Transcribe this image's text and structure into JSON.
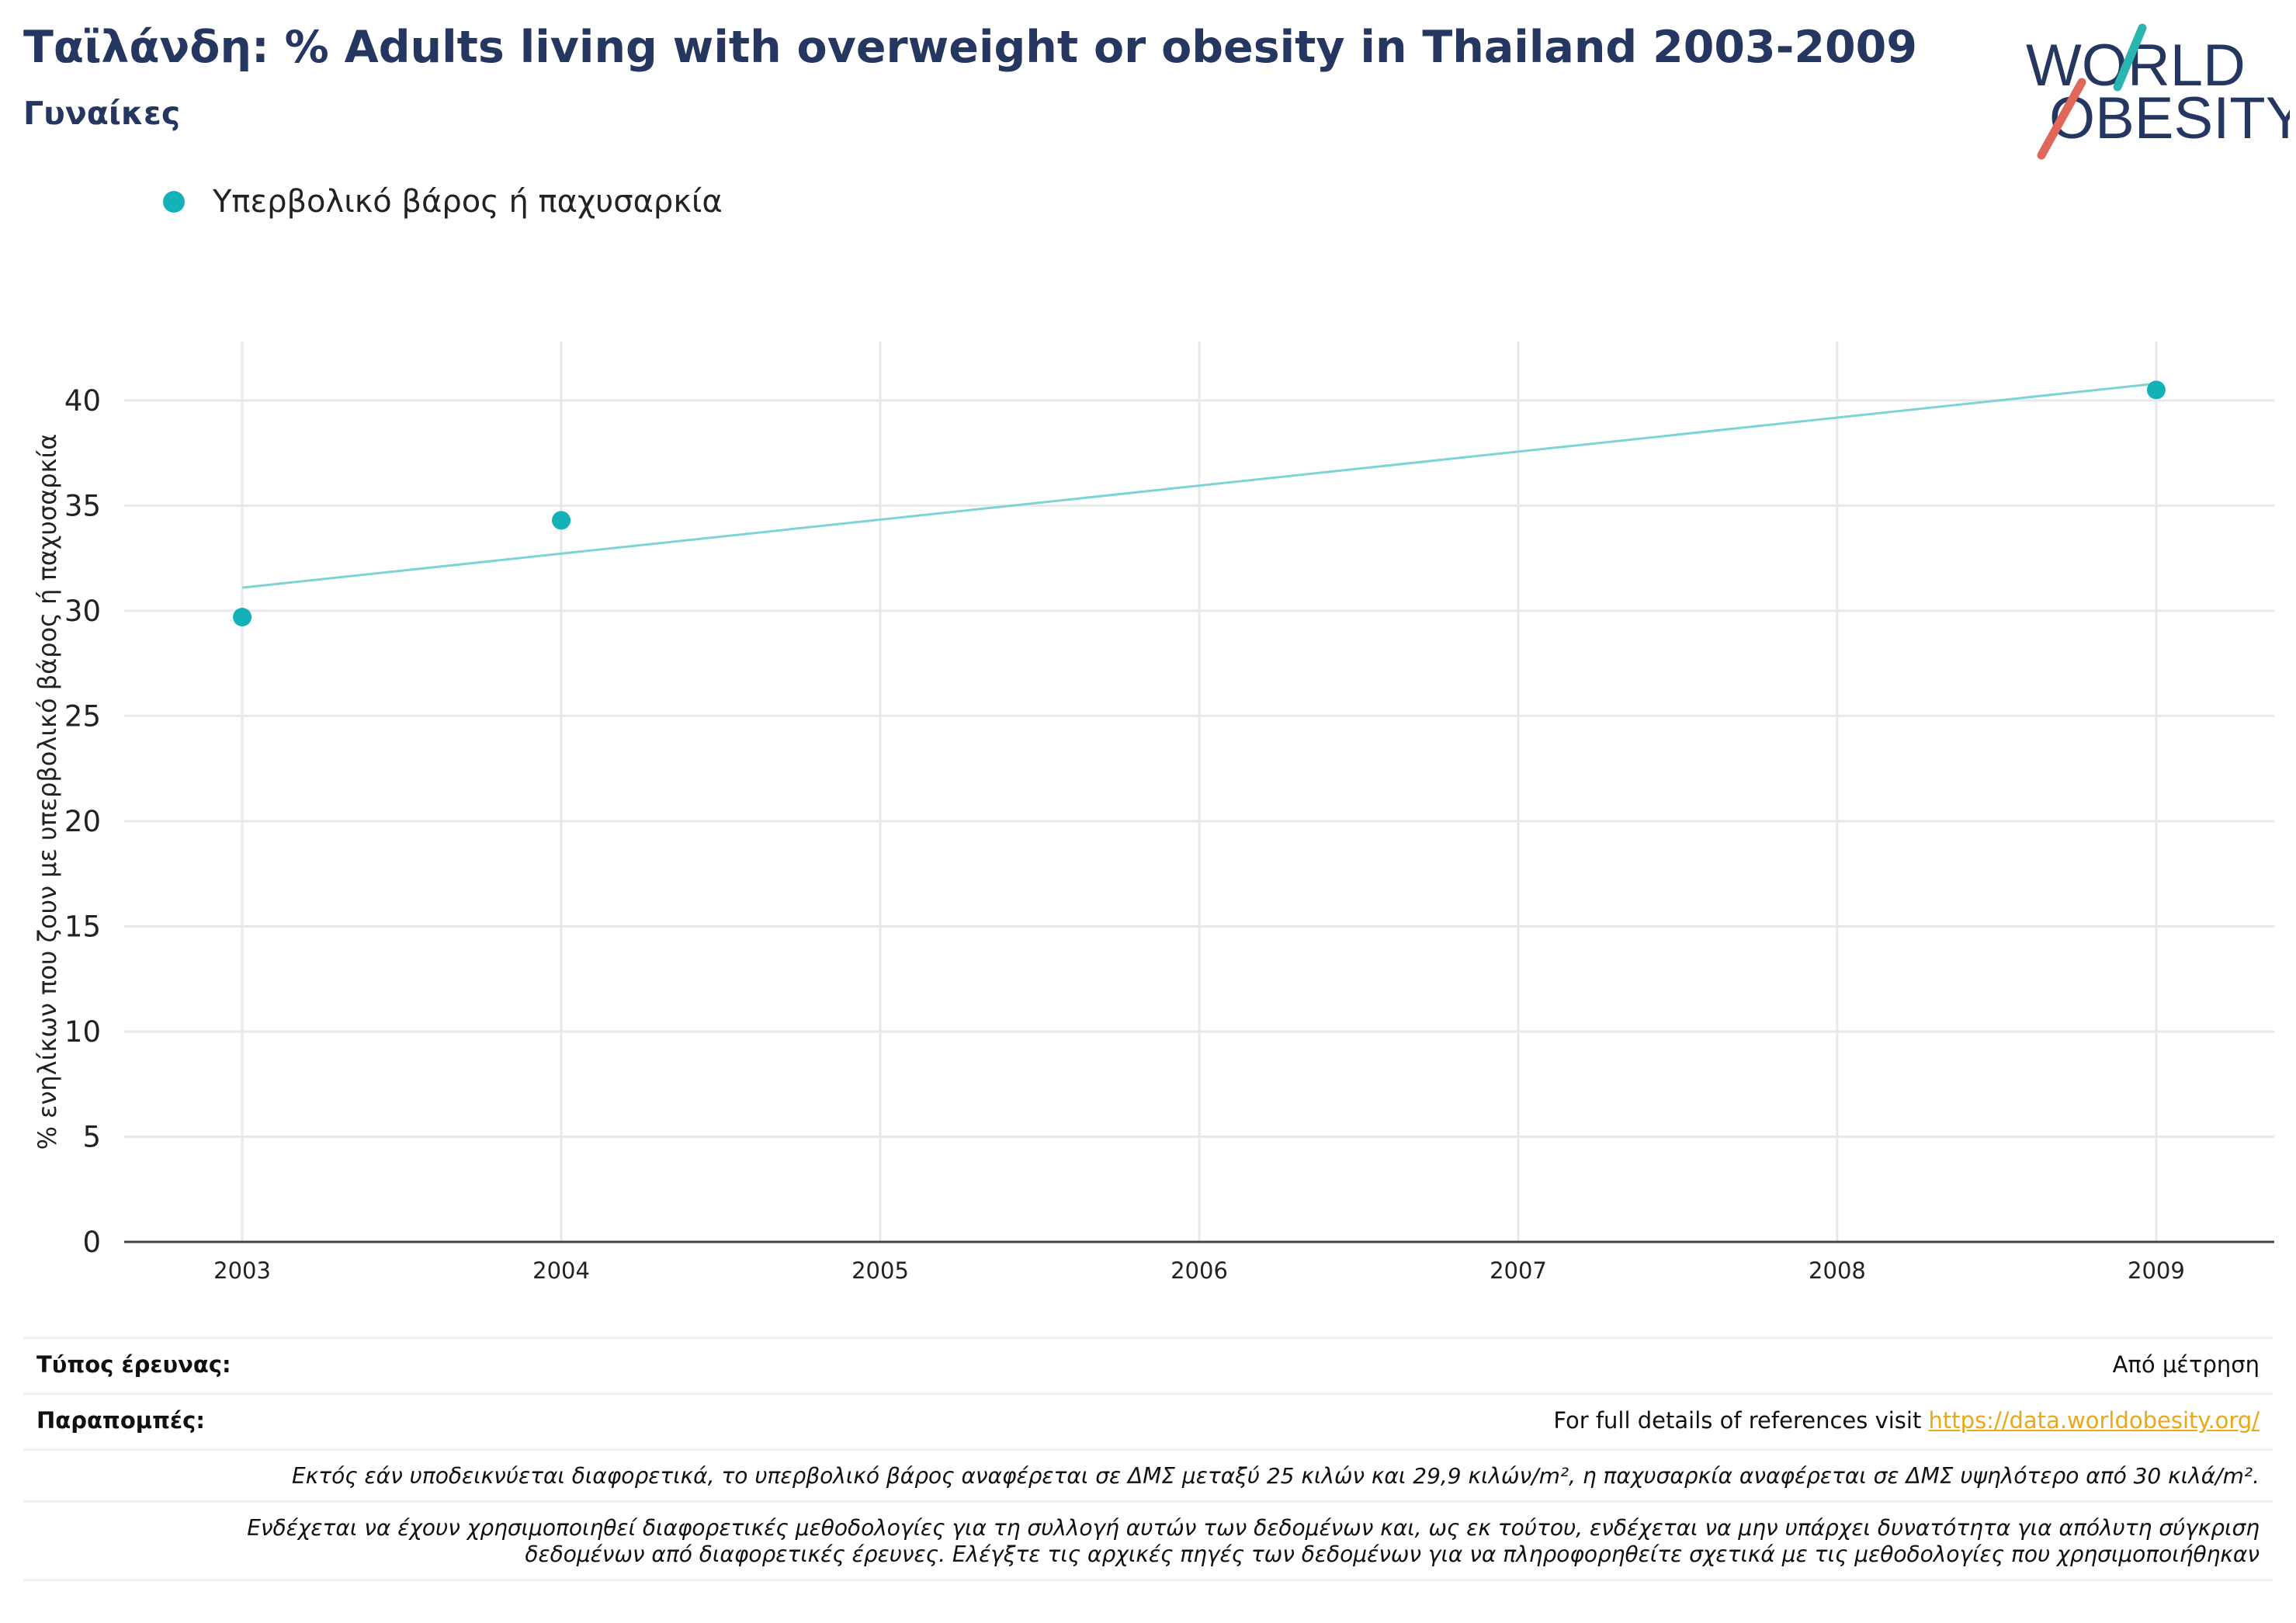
{
  "header": {
    "title": "Ταϊλάνδη: % Adults living with overweight or obesity in Thailand 2003-2009",
    "subtitle": "Γυναίκες"
  },
  "logo": {
    "line1": "WORLD",
    "line2": "OBESITY",
    "colors": {
      "text": "#253760",
      "slash_teal": "#2bb5b0",
      "slash_red": "#e0685a"
    }
  },
  "legend": {
    "items": [
      {
        "label": "Υπερβολικό βάρος ή παχυσαρκία",
        "color": "#14b1b9"
      }
    ]
  },
  "chart_data": {
    "type": "scatter",
    "ylabel": "% ενηλίκων που ζουν με υπερβολικό βάρος ή παχυσαρκία",
    "xlabel": "",
    "x_ticks": [
      "2003",
      "2004",
      "2005",
      "2006",
      "2007",
      "2008",
      "2009"
    ],
    "y_ticks": [
      0,
      5,
      10,
      15,
      20,
      25,
      30,
      35,
      40
    ],
    "ylim": [
      0,
      42.8
    ],
    "xlim": [
      2002.63,
      2009.37
    ],
    "grid": true,
    "series": [
      {
        "name": "Υπερβολικό βάρος ή παχυσαρκία",
        "color": "#14b1b9",
        "points": [
          {
            "x": 2003,
            "y": 29.7
          },
          {
            "x": 2004,
            "y": 34.3
          },
          {
            "x": 2009,
            "y": 40.5
          }
        ]
      }
    ],
    "trendline": {
      "color": "#7dd3d6",
      "start": {
        "x": 2003,
        "y": 31.1
      },
      "end": {
        "x": 2009,
        "y": 40.8
      }
    }
  },
  "footer": {
    "survey_type_label": "Τύπος έρευνας:",
    "survey_type_value": "Από μέτρηση",
    "references_label": "Παραπομπές:",
    "references_text": "For full details of references visit ",
    "references_link": "https://data.worldobesity.org/",
    "note1": "Εκτός εάν υποδεικνύεται διαφορετικά, το υπερβολικό βάρος αναφέρεται σε ΔΜΣ μεταξύ 25 κιλών και 29,9 κιλών/m², η παχυσαρκία αναφέρεται σε ΔΜΣ υψηλότερο από 30 κιλά/m².",
    "note2_line1": "Ενδέχεται να έχουν χρησιμοποιηθεί διαφορετικές μεθοδολογίες για τη συλλογή αυτών των δεδομένων και, ως εκ τούτου, ενδέχεται να μην υπάρχει δυνατότητα για απόλυτη σύγκριση",
    "note2_line2": "δεδομένων από διαφορετικές έρευνες. Ελέγξτε τις αρχικές πηγές των δεδομένων για να πληροφορηθείτε σχετικά με τις μεθοδολογίες που χρησιμοποιήθηκαν"
  }
}
